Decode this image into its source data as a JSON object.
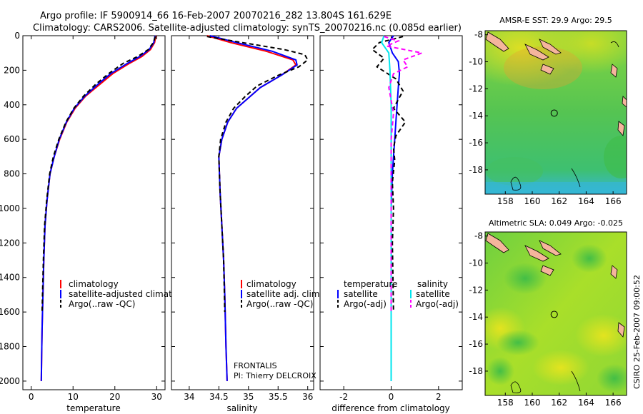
{
  "header": {
    "line1": "Argo profile: IF 5900914_66 16-Feb-2007 20070216_282 13.804S 161.629E",
    "line2": "Climatology: CARS2006. Satellite-adjusted climatology: synTS_20070216.nc (0.085d earlier)"
  },
  "colors": {
    "red": "#ff0000",
    "blue": "#0000ff",
    "black": "#000000",
    "cyan": "#00e5ee",
    "magenta": "#ff00ff",
    "coast": "#f5b59c"
  },
  "chart_data": [
    {
      "type": "line",
      "id": "temperature",
      "xlabel": "temperature",
      "ylabel": "",
      "xlim": [
        -2,
        32
      ],
      "ylim": [
        2050,
        0
      ],
      "xticks": [
        "0",
        "10",
        "20",
        "30"
      ],
      "xtick_values": [
        0,
        10,
        20,
        30
      ],
      "yticks": [
        "0",
        "200",
        "400",
        "600",
        "800",
        "1000",
        "1200",
        "1400",
        "1600",
        "1800",
        "2000"
      ],
      "ytick_values": [
        0,
        200,
        400,
        600,
        800,
        1000,
        1200,
        1400,
        1600,
        1800,
        2000
      ],
      "legend": [
        "climatology",
        "satellite-adjusted climatology",
        "Argo(..raw -QC)"
      ],
      "legend_position": "lower-middle",
      "series": [
        {
          "name": "climatology",
          "color": "red",
          "style": "solid",
          "x": [
            29.8,
            29.5,
            28.5,
            26.5,
            23.5,
            19.5,
            16.5,
            13.0,
            10.5,
            8.5,
            6.8,
            5.5,
            4.5,
            3.8,
            3.3,
            3.0,
            2.8,
            2.6,
            2.5,
            2.4
          ],
          "y": [
            0,
            40,
            80,
            120,
            160,
            220,
            280,
            350,
            420,
            500,
            600,
            700,
            800,
            950,
            1100,
            1300,
            1500,
            1700,
            1850,
            2000
          ]
        },
        {
          "name": "satellite-adjusted climatology",
          "color": "blue",
          "style": "solid",
          "x": [
            29.6,
            29.3,
            28.2,
            26.0,
            23.0,
            19.0,
            16.0,
            12.8,
            10.3,
            8.4,
            6.7,
            5.5,
            4.5,
            3.8,
            3.3,
            3.0,
            2.8,
            2.6,
            2.5,
            2.4
          ],
          "y": [
            0,
            40,
            80,
            120,
            160,
            220,
            280,
            350,
            420,
            500,
            600,
            700,
            800,
            950,
            1100,
            1300,
            1500,
            1700,
            1850,
            2000
          ]
        },
        {
          "name": "Argo(..raw -QC)",
          "color": "black",
          "style": "dashed",
          "x": [
            29.7,
            29.2,
            28.0,
            25.5,
            22.0,
            18.5,
            15.5,
            12.5,
            10.2,
            8.3,
            6.6,
            5.3,
            4.4,
            3.7,
            3.2,
            2.9,
            2.7,
            2.6
          ],
          "y": [
            5,
            40,
            80,
            120,
            160,
            220,
            280,
            350,
            420,
            500,
            600,
            700,
            800,
            950,
            1100,
            1300,
            1500,
            1600
          ]
        }
      ]
    },
    {
      "type": "line",
      "id": "salinity",
      "xlabel": "salinity",
      "xlim": [
        33.7,
        36.1
      ],
      "ylim": [
        2050,
        0
      ],
      "xticks": [
        "34",
        "34.5",
        "35",
        "35.5",
        "36"
      ],
      "xtick_values": [
        34,
        34.5,
        35,
        35.5,
        36
      ],
      "legend": [
        "climatology",
        "satellite adj. clim.",
        "Argo(..raw -QC)"
      ],
      "legend_position": "lower-middle",
      "annotation_lines": [
        "FRONTALIS",
        "PI: Thierry DELCROIX"
      ],
      "series": [
        {
          "name": "climatology",
          "color": "red",
          "style": "solid",
          "x": [
            34.3,
            34.7,
            35.3,
            35.75,
            35.8,
            35.55,
            35.2,
            35.0,
            34.8,
            34.65,
            34.55,
            34.5,
            34.52,
            34.55,
            34.58,
            34.6,
            34.62,
            34.64
          ],
          "y": [
            0,
            40,
            90,
            140,
            170,
            230,
            300,
            360,
            420,
            500,
            600,
            700,
            900,
            1100,
            1300,
            1500,
            1800,
            2000
          ]
        },
        {
          "name": "satellite adj. clim.",
          "color": "blue",
          "style": "solid",
          "x": [
            34.35,
            34.8,
            35.4,
            35.8,
            35.82,
            35.55,
            35.2,
            35.0,
            34.8,
            34.65,
            34.55,
            34.5,
            34.52,
            34.55,
            34.58,
            34.6,
            34.62,
            34.64
          ],
          "y": [
            0,
            40,
            90,
            140,
            170,
            230,
            300,
            360,
            420,
            500,
            600,
            700,
            900,
            1100,
            1300,
            1500,
            1800,
            2000
          ]
        },
        {
          "name": "Argo(..raw -QC)",
          "color": "black",
          "style": "dashed",
          "x": [
            34.3,
            34.9,
            35.6,
            35.95,
            36.0,
            35.85,
            35.5,
            35.15,
            34.95,
            34.75,
            34.62,
            34.53,
            34.5,
            34.52,
            34.55,
            34.58,
            34.6
          ],
          "y": [
            5,
            40,
            80,
            110,
            140,
            180,
            230,
            290,
            350,
            420,
            500,
            600,
            700,
            900,
            1100,
            1300,
            1600
          ]
        }
      ]
    },
    {
      "type": "line",
      "id": "difference",
      "xlabel": "difference from climatology",
      "xlim": [
        -3.0,
        3.0
      ],
      "ylim": [
        2050,
        0
      ],
      "xticks": [
        "-2",
        "0",
        "2"
      ],
      "xtick_values": [
        -2,
        0,
        2
      ],
      "legend_titles": [
        "temperature",
        "salinity"
      ],
      "legend": [
        "satellite",
        "Argo(-adj)",
        "satellite",
        "Argo(-adj)"
      ],
      "legend_position": "lower-middle",
      "series": [
        {
          "name": "temperature satellite",
          "color": "blue",
          "style": "solid",
          "x": [
            0.1,
            -0.1,
            0.05,
            0.3,
            0.35,
            0.3,
            0.25,
            0.2,
            0.15,
            0.1,
            0.05,
            0.0,
            0.0,
            0.0,
            0.0
          ],
          "y": [
            0,
            40,
            100,
            150,
            220,
            300,
            400,
            500,
            600,
            700,
            800,
            1000,
            1400,
            1800,
            2000
          ]
        },
        {
          "name": "temperature Argo(-adj)",
          "color": "black",
          "style": "dashed",
          "x": [
            0.5,
            -0.5,
            -0.8,
            -0.3,
            -0.6,
            0.2,
            0.5,
            0.1,
            0.6,
            0.2,
            0.1,
            0.15,
            0.05,
            0.1,
            0.05,
            0.1
          ],
          "y": [
            5,
            40,
            80,
            130,
            180,
            250,
            320,
            420,
            500,
            580,
            650,
            720,
            850,
            1000,
            1200,
            1600
          ]
        },
        {
          "name": "salinity satellite",
          "color": "cyan",
          "style": "solid",
          "x": [
            -0.3,
            -0.4,
            -0.1,
            -0.05,
            0.0,
            0.0,
            0.0,
            0.0,
            0.0,
            0.0
          ],
          "y": [
            0,
            40,
            100,
            200,
            400,
            600,
            800,
            1200,
            1600,
            2000
          ]
        },
        {
          "name": "salinity Argo(-adj)",
          "color": "magenta",
          "style": "dashed",
          "x": [
            -0.3,
            0.3,
            -0.2,
            1.3,
            0.5,
            0.7,
            0.1,
            -0.1,
            0.1,
            0.0,
            0.0,
            0.0,
            0.0
          ],
          "y": [
            5,
            30,
            60,
            100,
            140,
            180,
            220,
            300,
            450,
            600,
            800,
            1100,
            1600
          ]
        }
      ]
    },
    {
      "type": "heatmap",
      "id": "amsre-sst",
      "title": "AMSR-E SST: 29.9 Argo: 29.5",
      "xticks": [
        "158",
        "160",
        "162",
        "164",
        "166"
      ],
      "xtick_values": [
        158,
        160,
        162,
        164,
        166
      ],
      "yticks": [
        "-8",
        "-10",
        "-12",
        "-14",
        "-16",
        "-18"
      ],
      "ytick_values": [
        -8,
        -10,
        -12,
        -14,
        -16,
        -18
      ],
      "xlim": [
        156.5,
        167
      ],
      "ylim": [
        -19.8,
        -7.7
      ],
      "marker": {
        "lon": 161.63,
        "lat": -13.8
      }
    },
    {
      "type": "heatmap",
      "id": "altimetric-sla",
      "title": "Altimetric SLA: 0.049 Argo: -0.025",
      "xticks": [
        "158",
        "160",
        "162",
        "164",
        "166"
      ],
      "xtick_values": [
        158,
        160,
        162,
        164,
        166
      ],
      "yticks": [
        "-8",
        "-10",
        "-12",
        "-14",
        "-16",
        "-18"
      ],
      "ytick_values": [
        -8,
        -10,
        -12,
        -14,
        -16,
        -18
      ],
      "xlim": [
        156.5,
        167
      ],
      "ylim": [
        -19.8,
        -7.7
      ],
      "marker": {
        "lon": 161.63,
        "lat": -13.8
      }
    }
  ],
  "footer": {
    "stamp": "CSIRO 25-Feb-2007 09:00:52"
  }
}
